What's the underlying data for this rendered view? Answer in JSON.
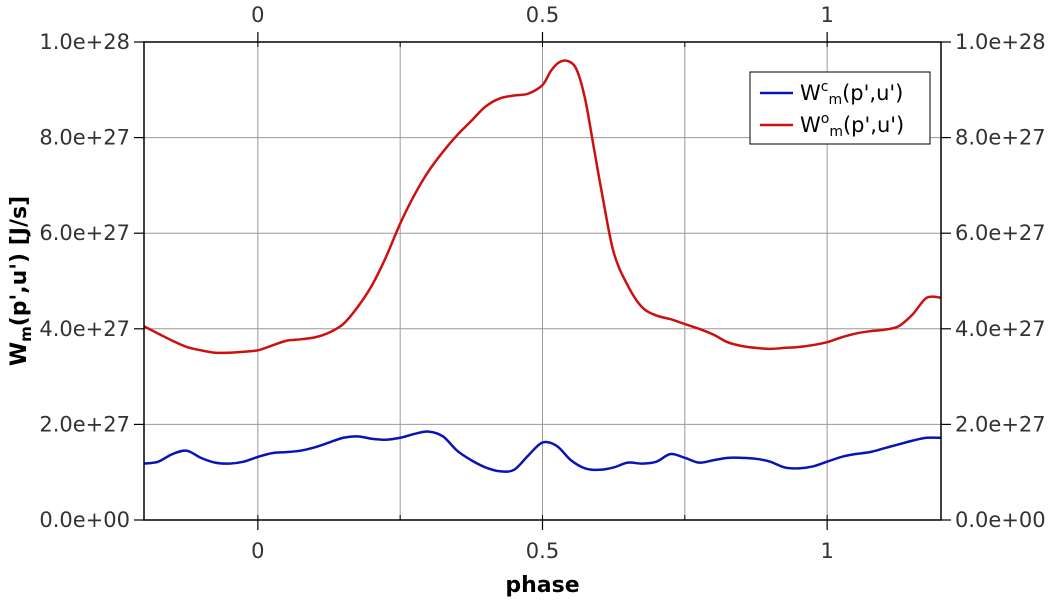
{
  "chart_data": {
    "type": "line",
    "title": "",
    "xlabel": "phase",
    "ylabel": {
      "base": "W",
      "sub": "m",
      "rest": "(p',u') [J/s]"
    },
    "xlim": [
      -0.2,
      1.2
    ],
    "ylim": [
      0,
      1e+28
    ],
    "x_ticks": [
      0,
      0.5,
      1
    ],
    "x_tick_labels": [
      "0",
      "0.5",
      "1"
    ],
    "y_ticks": [
      0,
      2e+27,
      4e+27,
      6e+27,
      8e+27,
      1e+28
    ],
    "y_tick_labels": [
      "0.0e+00",
      "2.0e+27",
      "4.0e+27",
      "6.0e+27",
      "8.0e+27",
      "1.0e+28"
    ],
    "grid": true,
    "mirror_axes": true,
    "legend_position": "top-right",
    "series": [
      {
        "name": {
          "base": "W",
          "sup": "c",
          "sub": "m",
          "rest": "(p',u')"
        },
        "color": "#0a14b4",
        "x": [
          -0.2,
          -0.175,
          -0.15,
          -0.125,
          -0.1,
          -0.075,
          -0.05,
          -0.025,
          0,
          0.025,
          0.05,
          0.075,
          0.1,
          0.125,
          0.15,
          0.175,
          0.2,
          0.225,
          0.25,
          0.275,
          0.3,
          0.325,
          0.35,
          0.375,
          0.4,
          0.425,
          0.45,
          0.475,
          0.5,
          0.525,
          0.55,
          0.575,
          0.6,
          0.625,
          0.65,
          0.675,
          0.7,
          0.725,
          0.75,
          0.775,
          0.8,
          0.825,
          0.85,
          0.875,
          0.9,
          0.925,
          0.95,
          0.975,
          1,
          1.025,
          1.05,
          1.075,
          1.1,
          1.125,
          1.15,
          1.175,
          1.2
        ],
        "y": [
          1.18e+27,
          1.22e+27,
          1.38e+27,
          1.45e+27,
          1.3e+27,
          1.2e+27,
          1.18e+27,
          1.22e+27,
          1.32e+27,
          1.4e+27,
          1.42e+27,
          1.45e+27,
          1.52e+27,
          1.62e+27,
          1.72e+27,
          1.75e+27,
          1.7e+27,
          1.68e+27,
          1.72e+27,
          1.8e+27,
          1.85e+27,
          1.75e+27,
          1.45e+27,
          1.25e+27,
          1.1e+27,
          1.02e+27,
          1.05e+27,
          1.35e+27,
          1.62e+27,
          1.55e+27,
          1.25e+27,
          1.08e+27,
          1.05e+27,
          1.1e+27,
          1.2e+27,
          1.18e+27,
          1.22e+27,
          1.38e+27,
          1.3e+27,
          1.2e+27,
          1.25e+27,
          1.3e+27,
          1.3e+27,
          1.28e+27,
          1.22e+27,
          1.1e+27,
          1.08e+27,
          1.12e+27,
          1.22e+27,
          1.32e+27,
          1.38e+27,
          1.42e+27,
          1.5e+27,
          1.58e+27,
          1.66e+27,
          1.72e+27,
          1.72e+27
        ]
      },
      {
        "name": {
          "base": "W",
          "sup": "o",
          "sub": "m",
          "rest": "(p',u')"
        },
        "color": "#cc1010",
        "x": [
          -0.2,
          -0.175,
          -0.15,
          -0.125,
          -0.1,
          -0.075,
          -0.05,
          -0.025,
          0,
          0.025,
          0.05,
          0.075,
          0.1,
          0.125,
          0.15,
          0.175,
          0.2,
          0.225,
          0.25,
          0.275,
          0.3,
          0.325,
          0.35,
          0.375,
          0.4,
          0.425,
          0.45,
          0.475,
          0.5,
          0.515,
          0.53,
          0.545,
          0.56,
          0.575,
          0.59,
          0.605,
          0.625,
          0.65,
          0.675,
          0.7,
          0.725,
          0.75,
          0.775,
          0.8,
          0.825,
          0.85,
          0.875,
          0.9,
          0.925,
          0.95,
          0.975,
          1,
          1.025,
          1.05,
          1.075,
          1.1,
          1.125,
          1.15,
          1.175,
          1.2
        ],
        "y": [
          4.05e+27,
          3.9e+27,
          3.75e+27,
          3.62e+27,
          3.55e+27,
          3.5e+27,
          3.5e+27,
          3.52e+27,
          3.55e+27,
          3.65e+27,
          3.75e+27,
          3.78e+27,
          3.82e+27,
          3.92e+27,
          4.1e+27,
          4.45e+27,
          4.9e+27,
          5.5e+27,
          6.2e+27,
          6.8e+27,
          7.3e+27,
          7.7e+27,
          8.05e+27,
          8.35e+27,
          8.65e+27,
          8.82e+27,
          8.88e+27,
          8.92e+27,
          9.1e+27,
          9.4e+27,
          9.58e+27,
          9.6e+27,
          9.42e+27,
          8.8e+27,
          7.8e+27,
          6.8e+27,
          5.6e+27,
          4.9e+27,
          4.45e+27,
          4.28e+27,
          4.2e+27,
          4.1e+27,
          4e+27,
          3.88e+27,
          3.72e+27,
          3.64e+27,
          3.6e+27,
          3.58e+27,
          3.6e+27,
          3.62e+27,
          3.66e+27,
          3.72e+27,
          3.82e+27,
          3.9e+27,
          3.95e+27,
          3.98e+27,
          4.05e+27,
          4.3e+27,
          4.65e+27,
          4.65e+27
        ]
      }
    ]
  }
}
